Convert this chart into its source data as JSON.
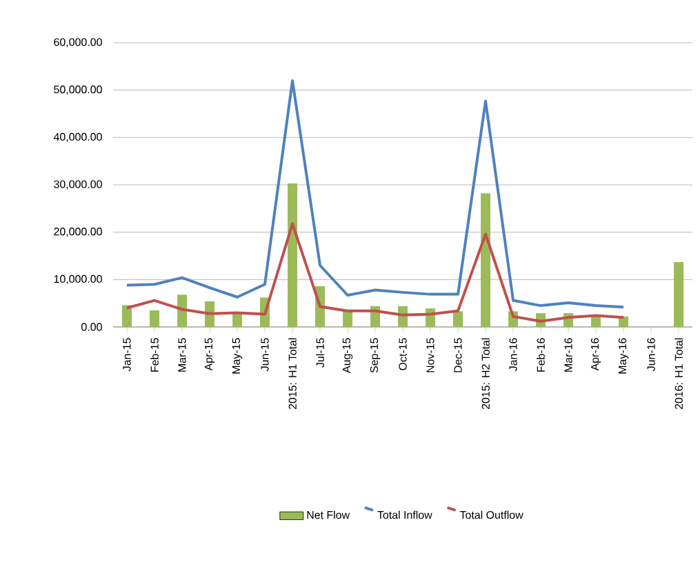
{
  "chart_data": {
    "type": "bar",
    "categories": [
      "Jan-15",
      "Feb-15",
      "Mar-15",
      "Apr-15",
      "May-15",
      "Jun-15",
      "2015: H1 Total",
      "Jul-15",
      "Aug-15",
      "Sep-15",
      "Oct-15",
      "Nov-15",
      "Dec-15",
      "2015: H2 Total",
      "Jan-16",
      "Feb-16",
      "Mar-16",
      "Apr-16",
      "May-16",
      "Jun-16",
      "2016: H1 Total"
    ],
    "series": [
      {
        "name": "Net Flow",
        "color": "#9bbb59",
        "values": [
          4600,
          3500,
          6800,
          5400,
          2900,
          6200,
          30300,
          8600,
          3400,
          4400,
          4400,
          3900,
          3300,
          28200,
          3300,
          2900,
          2900,
          2500,
          2200,
          null,
          13700
        ]
      },
      {
        "name": "Total Inflow",
        "type": "line",
        "color": "#4f81bd",
        "values": [
          8800,
          9000,
          10400,
          8300,
          6300,
          9000,
          52000,
          13000,
          6700,
          7800,
          7300,
          6900,
          6900,
          47700,
          5600,
          4500,
          5100,
          4500,
          4200,
          null,
          null
        ]
      },
      {
        "name": "Total Outflow",
        "type": "line",
        "color": "#c0504d",
        "values": [
          4000,
          5600,
          3700,
          2800,
          3000,
          2700,
          21800,
          4300,
          3400,
          3400,
          2500,
          2700,
          3400,
          19600,
          2200,
          1200,
          2000,
          2400,
          2000,
          null,
          null
        ]
      }
    ],
    "ylim": [
      0,
      60000
    ],
    "yticks": [
      {
        "value": 0,
        "label": "0.00"
      },
      {
        "value": 10000,
        "label": "10,000.00"
      },
      {
        "value": 20000,
        "label": "20,000.00"
      },
      {
        "value": 30000,
        "label": "30,000.00"
      },
      {
        "value": 40000,
        "label": "40,000.00"
      },
      {
        "value": 50000,
        "label": "50,000.00"
      },
      {
        "value": 60000,
        "label": "60,000.00"
      }
    ],
    "grid": "y",
    "legend": "bottom",
    "marker": "none",
    "line_style": "solid"
  }
}
